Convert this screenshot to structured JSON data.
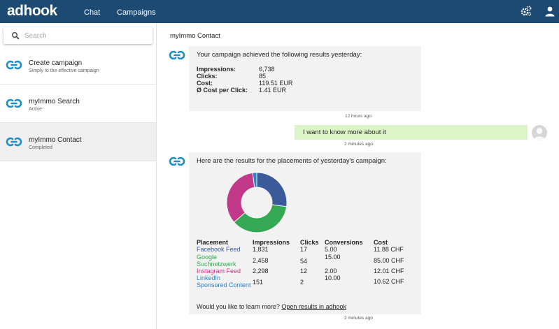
{
  "app": {
    "logo": "adhook",
    "nav": [
      {
        "label": "Chat"
      },
      {
        "label": "Campaigns"
      }
    ],
    "icons": [
      "gears-icon",
      "user-icon"
    ]
  },
  "sidebar": {
    "search": {
      "placeholder": "Search",
      "value": ""
    },
    "items": [
      {
        "title": "Create campaign",
        "subtitle": "Simply to the effective campaign"
      },
      {
        "title": "myImmo Search",
        "subtitle": "Active"
      },
      {
        "title": "myImmo Contact",
        "subtitle": "Completed"
      }
    ]
  },
  "conversation": {
    "title": "myImmo Contact",
    "message1": {
      "intro": "Your campaign achieved the following results yesterday:",
      "stats": [
        {
          "label": "Impressions:",
          "value": "6,738"
        },
        {
          "label": "Clicks:",
          "value": "85"
        },
        {
          "label": "Cost:",
          "value": "119.51 EUR"
        },
        {
          "label": "Ø Cost per Click:",
          "value": "1.41 EUR"
        }
      ],
      "time": "12 hours ago"
    },
    "user_message": {
      "text": "I want to know more about it",
      "time": "2 minutes ago"
    },
    "message2": {
      "intro": "Here are the results for the placements of yesterday's campaign:",
      "chart_data": {
        "type": "pie",
        "variant": "donut",
        "categories": [
          "Facebook Feed",
          "Google Suchnetzwerk",
          "Instagram Feed",
          "LinkedIn Sponsored Content"
        ],
        "values": [
          1831,
          2458,
          2298,
          151
        ],
        "colors": [
          "#3b5a9a",
          "#34a853",
          "#c2398a",
          "#2d83c4"
        ]
      },
      "table": {
        "headers": [
          "Placement",
          "Impressions",
          "Clicks",
          "Conversions",
          "Cost"
        ],
        "rows": [
          {
            "placement": "Facebook Feed",
            "impressions": "1,831",
            "clicks": "17",
            "conversions": "5.00",
            "cost": "11.88 CHF",
            "color": "#3b5a9a"
          },
          {
            "placement": "Google Suchnetzwerk",
            "impressions": "2,458",
            "clicks": "54",
            "conversions": "15.00",
            "cost": "85.00 CHF",
            "color": "#34a853"
          },
          {
            "placement": "Instagram Feed",
            "impressions": "2,298",
            "clicks": "12",
            "conversions": "2.00",
            "cost": "12.01 CHF",
            "color": "#c2398a"
          },
          {
            "placement": "LinkedIn Sponsored Content",
            "impressions": "151",
            "clicks": "2",
            "conversions": "10.00",
            "cost": "10.62 CHF",
            "color": "#2d83c4"
          }
        ]
      },
      "learn_prefix": "Would you like to learn more?",
      "learn_link": "Open results in adhook",
      "time": "2 minutes ago"
    }
  }
}
